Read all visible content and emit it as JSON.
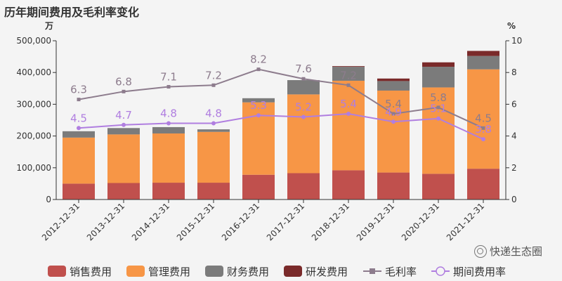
{
  "title": "历年期间费用及毛利率变化",
  "watermark": "快递生态圈",
  "chart_data": {
    "type": "bar",
    "stacked": true,
    "left_axis_unit": "万",
    "right_axis_unit": "%",
    "categories": [
      "2012-12-31",
      "2013-12-31",
      "2014-12-31",
      "2015-12-31",
      "2016-12-31",
      "2017-12-31",
      "2018-12-31",
      "2019-12-31",
      "2020-12-31",
      "2021-12-31"
    ],
    "left_ylim": [
      0,
      500000
    ],
    "left_ticks": [
      0,
      100000,
      200000,
      300000,
      400000,
      500000
    ],
    "left_tick_labels": [
      "0",
      "100,000",
      "200,000",
      "300,000",
      "400,000",
      "500,000"
    ],
    "right_ylim": [
      0,
      10
    ],
    "right_ticks": [
      0,
      2,
      4,
      6,
      8,
      10
    ],
    "right_tick_labels": [
      "0",
      "2",
      "4",
      "6",
      "8",
      "10"
    ],
    "colors": {
      "sales": "#c0504d",
      "admin": "#f79646",
      "finance": "#7b7b7b",
      "rd": "#7a2a2a",
      "gross": "#8d7c8d",
      "period": "#b07ee0"
    },
    "series": [
      {
        "name": "销售费用",
        "key": "sales",
        "kind": "bar",
        "values": [
          50000,
          52000,
          53000,
          53000,
          78000,
          83000,
          92000,
          85000,
          81000,
          97000
        ]
      },
      {
        "name": "管理费用",
        "key": "admin",
        "kind": "bar",
        "values": [
          145000,
          153000,
          155000,
          160000,
          228000,
          248000,
          282000,
          258000,
          272000,
          313000
        ]
      },
      {
        "name": "财务费用",
        "key": "finance",
        "kind": "bar",
        "values": [
          20000,
          20000,
          20000,
          8000,
          13000,
          45000,
          44000,
          30000,
          65000,
          42000
        ]
      },
      {
        "name": "研发费用",
        "key": "rd",
        "kind": "bar",
        "values": [
          0,
          0,
          0,
          0,
          0,
          0,
          2000,
          8000,
          14000,
          16000
        ]
      },
      {
        "name": "毛利率",
        "key": "gross",
        "kind": "line",
        "marker": "square",
        "values": [
          6.3,
          6.8,
          7.1,
          7.2,
          8.2,
          7.6,
          7.2,
          5.4,
          5.8,
          4.5
        ],
        "labels": [
          "6.3",
          "6.8",
          "7.1",
          "7.2",
          "8.2",
          "7.6",
          "7.2",
          "5.4",
          "5.8",
          "4.5"
        ]
      },
      {
        "name": "期间费用率",
        "key": "period",
        "kind": "line",
        "marker": "circle",
        "values": [
          4.5,
          4.7,
          4.8,
          4.8,
          5.3,
          5.2,
          5.4,
          4.9,
          5.1,
          3.8
        ],
        "labels": [
          "4.5",
          "4.7",
          "4.8",
          "4.8",
          "5.3",
          "5.2",
          "5.4",
          "4.9",
          "5.1",
          "3.8"
        ]
      }
    ],
    "legend_position": "bottom"
  }
}
